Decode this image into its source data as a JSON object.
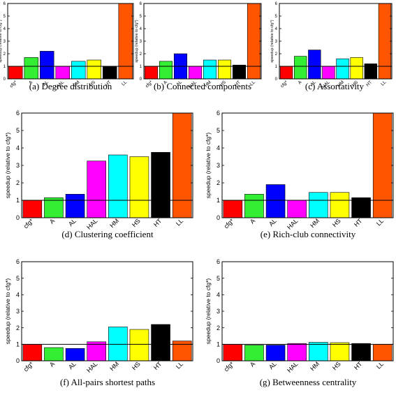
{
  "figure": {
    "categories": [
      "cfg*",
      "A",
      "AL",
      "HAL",
      "HM",
      "HS",
      "HT",
      "LL"
    ],
    "colors": [
      "#ff0000",
      "#33ee33",
      "#0000ff",
      "#ff00ff",
      "#00ffff",
      "#ffff00",
      "#000000",
      "#ff5500"
    ],
    "ylabel_small": "speedup (relative to cfg*)",
    "ylabel_large": "speedup (relative to cfg*)"
  },
  "chart_data": [
    {
      "type": "bar",
      "caption": "(a) Degree distribution",
      "categories": [
        "cfg*",
        "A",
        "AL",
        "HAL",
        "HM",
        "HS",
        "HT",
        "LL"
      ],
      "values": [
        1.0,
        1.7,
        2.2,
        1.0,
        1.4,
        1.5,
        1.0,
        6.0
      ],
      "ylabel": "speedup (relative to cfg*)",
      "ylim": [
        0,
        6
      ],
      "yticks": [
        "0",
        "1",
        "2",
        "3",
        "4",
        "5",
        "6"
      ],
      "reference_line": 1
    },
    {
      "type": "bar",
      "caption": "(b) Connected components",
      "categories": [
        "cfg*",
        "A",
        "AL",
        "HAL",
        "HM",
        "HS",
        "HT",
        "LL"
      ],
      "values": [
        1.0,
        1.4,
        2.0,
        1.0,
        1.5,
        1.5,
        1.1,
        6.0
      ],
      "ylabel": "speedup (relative to cfg*)",
      "ylim": [
        0,
        6
      ],
      "yticks": [
        "0",
        "1",
        "2",
        "3",
        "4",
        "5",
        "6"
      ],
      "reference_line": 1
    },
    {
      "type": "bar",
      "caption": "(c) Assortativity",
      "categories": [
        "cfg*",
        "A",
        "AL",
        "HAL",
        "HM",
        "HS",
        "HT",
        "LL"
      ],
      "values": [
        1.0,
        1.8,
        2.3,
        1.0,
        1.6,
        1.7,
        1.2,
        6.0
      ],
      "ylabel": "speedup (relative to cfg*)",
      "ylim": [
        0,
        6
      ],
      "yticks": [
        "0",
        "1",
        "2",
        "3",
        "4",
        "5",
        "6"
      ],
      "reference_line": 1
    },
    {
      "type": "bar",
      "caption": "(d) Clustering coefficient",
      "categories": [
        "cfg*",
        "A",
        "AL",
        "HAL",
        "HM",
        "HS",
        "HT",
        "LL"
      ],
      "values": [
        1.0,
        1.15,
        1.35,
        3.25,
        3.6,
        3.5,
        3.75,
        6.0
      ],
      "ylabel": "speedup (relative to cfg*)",
      "ylim": [
        0,
        6
      ],
      "yticks": [
        "0",
        "1",
        "2",
        "3",
        "4",
        "5",
        "6"
      ],
      "reference_line": 1
    },
    {
      "type": "bar",
      "caption": "(e) Rich-club connectivity",
      "categories": [
        "cfg*",
        "A",
        "AL",
        "HAL",
        "HM",
        "HS",
        "HT",
        "LL"
      ],
      "values": [
        1.0,
        1.35,
        1.9,
        1.0,
        1.45,
        1.45,
        1.15,
        6.0
      ],
      "ylabel": "speedup (relative to cfg*)",
      "ylim": [
        0,
        6
      ],
      "yticks": [
        "0",
        "1",
        "2",
        "3",
        "4",
        "5",
        "6"
      ],
      "reference_line": 1
    },
    {
      "type": "bar",
      "caption": "(f) All-pairs shortest paths",
      "categories": [
        "cfg*",
        "A",
        "AL",
        "HAL",
        "HM",
        "HS",
        "HT",
        "LL"
      ],
      "values": [
        1.0,
        0.8,
        0.75,
        1.15,
        2.05,
        1.9,
        2.2,
        1.2
      ],
      "ylabel": "speedup (relative to cfg*)",
      "ylim": [
        0,
        6
      ],
      "yticks": [
        "0",
        "1",
        "2",
        "3",
        "4",
        "5",
        "6"
      ],
      "reference_line": 1
    },
    {
      "type": "bar",
      "caption": "(g) Betweenness centrality",
      "categories": [
        "cfg*",
        "A",
        "AL",
        "HAL",
        "HM",
        "HS",
        "HT",
        "LL"
      ],
      "values": [
        1.0,
        0.95,
        0.95,
        1.05,
        1.12,
        1.1,
        1.05,
        1.0
      ],
      "ylabel": "speedup (relative to cfg*)",
      "ylim": [
        0,
        6
      ],
      "yticks": [
        "0",
        "1",
        "2",
        "3",
        "4",
        "5",
        "6"
      ],
      "reference_line": 1
    }
  ]
}
